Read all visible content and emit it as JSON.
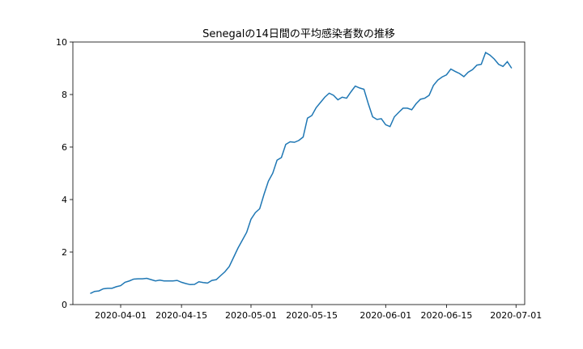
{
  "chart_data": {
    "type": "line",
    "title": "Senegalの14日間の平均感染者数の推移",
    "xlabel": "",
    "ylabel": "",
    "ylim": [
      0,
      10
    ],
    "xlim": [
      "2020-03-21",
      "2020-07-03"
    ],
    "grid": false,
    "line_color": "#1f77b4",
    "yticks": [
      0,
      2,
      4,
      6,
      8,
      10
    ],
    "xticks": [
      "2020-04-01",
      "2020-04-15",
      "2020-05-01",
      "2020-05-15",
      "2020-06-01",
      "2020-06-15",
      "2020-07-01"
    ],
    "series": [
      {
        "x": [
          "2020-03-25",
          "2020-03-26",
          "2020-03-27",
          "2020-03-28",
          "2020-03-29",
          "2020-03-30",
          "2020-03-31",
          "2020-04-01",
          "2020-04-02",
          "2020-04-03",
          "2020-04-04",
          "2020-04-05",
          "2020-04-06",
          "2020-04-07",
          "2020-04-08",
          "2020-04-09",
          "2020-04-10",
          "2020-04-11",
          "2020-04-12",
          "2020-04-13",
          "2020-04-14",
          "2020-04-15",
          "2020-04-16",
          "2020-04-17",
          "2020-04-18",
          "2020-04-19",
          "2020-04-20",
          "2020-04-21",
          "2020-04-22",
          "2020-04-23",
          "2020-04-24",
          "2020-04-25",
          "2020-04-26",
          "2020-04-27",
          "2020-04-28",
          "2020-04-29",
          "2020-04-30",
          "2020-05-01",
          "2020-05-02",
          "2020-05-03",
          "2020-05-04",
          "2020-05-05",
          "2020-05-06",
          "2020-05-07",
          "2020-05-08",
          "2020-05-09",
          "2020-05-10",
          "2020-05-11",
          "2020-05-12",
          "2020-05-13",
          "2020-05-14",
          "2020-05-15",
          "2020-05-16",
          "2020-05-17",
          "2020-05-18",
          "2020-05-19",
          "2020-05-20",
          "2020-05-21",
          "2020-05-22",
          "2020-05-23",
          "2020-05-24",
          "2020-05-25",
          "2020-05-26",
          "2020-05-27",
          "2020-05-28",
          "2020-05-29",
          "2020-05-30",
          "2020-05-31",
          "2020-06-01",
          "2020-06-02",
          "2020-06-03",
          "2020-06-04",
          "2020-06-05",
          "2020-06-06",
          "2020-06-07",
          "2020-06-08",
          "2020-06-09",
          "2020-06-10",
          "2020-06-11",
          "2020-06-12",
          "2020-06-13",
          "2020-06-14",
          "2020-06-15",
          "2020-06-16",
          "2020-06-17",
          "2020-06-18",
          "2020-06-19",
          "2020-06-20",
          "2020-06-21",
          "2020-06-22",
          "2020-06-23",
          "2020-06-24",
          "2020-06-25",
          "2020-06-26",
          "2020-06-27",
          "2020-06-28",
          "2020-06-29",
          "2020-06-30"
        ],
        "y": [
          0.42,
          0.5,
          0.52,
          0.6,
          0.62,
          0.62,
          0.68,
          0.72,
          0.85,
          0.9,
          0.97,
          0.98,
          0.98,
          1.0,
          0.95,
          0.9,
          0.93,
          0.9,
          0.9,
          0.9,
          0.92,
          0.85,
          0.8,
          0.76,
          0.77,
          0.87,
          0.84,
          0.82,
          0.92,
          0.95,
          1.1,
          1.25,
          1.45,
          1.8,
          2.15,
          2.45,
          2.75,
          3.25,
          3.5,
          3.65,
          4.2,
          4.7,
          5.0,
          5.5,
          5.6,
          6.1,
          6.2,
          6.18,
          6.25,
          6.38,
          7.1,
          7.2,
          7.5,
          7.7,
          7.9,
          8.05,
          7.97,
          7.8,
          7.9,
          7.86,
          8.1,
          8.32,
          8.25,
          8.2,
          7.65,
          7.15,
          7.05,
          7.08,
          6.85,
          6.78,
          7.15,
          7.32,
          7.48,
          7.48,
          7.42,
          7.65,
          7.82,
          7.86,
          7.97,
          8.35,
          8.55,
          8.67,
          8.75,
          8.97,
          8.88,
          8.8,
          8.68,
          8.85,
          8.95,
          9.12,
          9.15,
          9.6,
          9.5,
          9.35,
          9.15,
          9.07,
          9.25,
          9.0
        ]
      }
    ]
  }
}
